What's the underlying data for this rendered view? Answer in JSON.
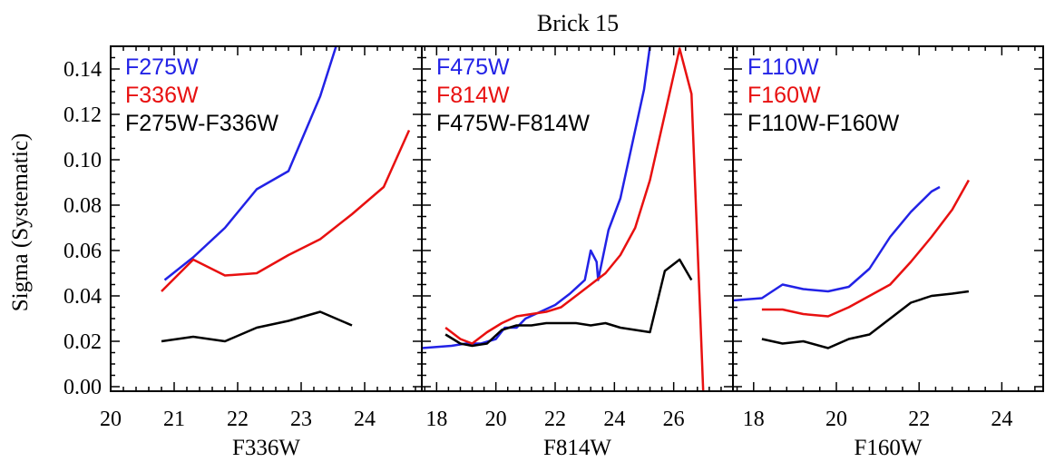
{
  "figure_title": "Brick 15",
  "ylabel": "Sigma (Systematic)",
  "colors": {
    "blue": "#2222e6",
    "red": "#e81010",
    "black": "#000000"
  },
  "chart_data": [
    {
      "type": "line",
      "title": "",
      "xlabel": "F336W",
      "ylabel": "Sigma (Systematic)",
      "xlim": [
        20,
        24.9
      ],
      "ylim": [
        -0.002,
        0.15
      ],
      "xticks": [
        20,
        21,
        22,
        23,
        24
      ],
      "xtick_labels": [
        "20",
        "21",
        "22",
        "23",
        "24"
      ],
      "yticks": [
        0.0,
        0.02,
        0.04,
        0.06,
        0.08,
        0.1,
        0.12,
        0.14
      ],
      "ytick_labels": [
        "0.00",
        "0.02",
        "0.04",
        "0.06",
        "0.08",
        "0.10",
        "0.12",
        "0.14"
      ],
      "legend_placement": "top-left",
      "series": [
        {
          "name": "F275W",
          "color": "#2222e6",
          "x": [
            20.85,
            21.3,
            21.8,
            22.3,
            22.8,
            23.3,
            23.55
          ],
          "y": [
            0.047,
            0.057,
            0.07,
            0.087,
            0.095,
            0.128,
            0.15
          ]
        },
        {
          "name": "F336W",
          "color": "#e81010",
          "x": [
            20.8,
            21.3,
            21.8,
            22.3,
            22.8,
            23.3,
            23.8,
            24.3,
            24.7
          ],
          "y": [
            0.042,
            0.056,
            0.049,
            0.05,
            0.058,
            0.065,
            0.076,
            0.088,
            0.113
          ]
        },
        {
          "name": "F275W-F336W",
          "color": "#000000",
          "x": [
            20.8,
            21.3,
            21.8,
            22.3,
            22.8,
            23.3,
            23.8
          ],
          "y": [
            0.02,
            0.022,
            0.02,
            0.026,
            0.029,
            0.033,
            0.027
          ]
        }
      ]
    },
    {
      "type": "line",
      "title": "",
      "xlabel": "F814W",
      "ylabel": "",
      "xlim": [
        17.5,
        28.0
      ],
      "ylim": [
        -0.002,
        0.15
      ],
      "xticks": [
        18,
        20,
        22,
        24,
        26
      ],
      "xtick_labels": [
        "18",
        "20",
        "22",
        "24",
        "26"
      ],
      "yticks": [
        0.0,
        0.02,
        0.04,
        0.06,
        0.08,
        0.1,
        0.12,
        0.14
      ],
      "ytick_labels": [],
      "legend_placement": "top-left",
      "series": [
        {
          "name": "F475W",
          "color": "#2222e6",
          "x": [
            17.5,
            18.5,
            19.0,
            19.5,
            20.0,
            20.3,
            20.7,
            21.0,
            21.5,
            22.0,
            22.5,
            23.0,
            23.2,
            23.4,
            23.45,
            23.8,
            24.2,
            24.5,
            25.0,
            25.2,
            25.4
          ],
          "y": [
            0.017,
            0.018,
            0.019,
            0.019,
            0.021,
            0.026,
            0.026,
            0.03,
            0.033,
            0.036,
            0.041,
            0.047,
            0.06,
            0.055,
            0.047,
            0.069,
            0.083,
            0.101,
            0.131,
            0.15,
            0.165
          ]
        },
        {
          "name": "F814W",
          "color": "#e81010",
          "x": [
            18.3,
            18.8,
            19.2,
            19.7,
            20.2,
            20.7,
            21.2,
            21.7,
            22.2,
            22.7,
            23.2,
            23.7,
            24.2,
            24.7,
            25.2,
            25.7,
            26.2,
            26.6,
            26.9,
            27.0
          ],
          "y": [
            0.026,
            0.021,
            0.019,
            0.024,
            0.028,
            0.031,
            0.032,
            0.033,
            0.035,
            0.04,
            0.045,
            0.05,
            0.058,
            0.07,
            0.091,
            0.12,
            0.149,
            0.129,
            0.03,
            -0.003
          ]
        },
        {
          "name": "F475W-F814W",
          "color": "#000000",
          "x": [
            18.3,
            18.8,
            19.2,
            19.7,
            20.2,
            20.7,
            21.2,
            21.7,
            22.2,
            22.7,
            23.2,
            23.7,
            24.2,
            24.7,
            25.2,
            25.7,
            26.2,
            26.6
          ],
          "y": [
            0.023,
            0.019,
            0.018,
            0.019,
            0.025,
            0.027,
            0.027,
            0.028,
            0.028,
            0.028,
            0.027,
            0.028,
            0.026,
            0.025,
            0.024,
            0.051,
            0.056,
            0.047
          ]
        }
      ]
    },
    {
      "type": "line",
      "title": "",
      "xlabel": "F160W",
      "ylabel": "",
      "xlim": [
        17.5,
        25.0
      ],
      "ylim": [
        -0.002,
        0.15
      ],
      "xticks": [
        18,
        20,
        22,
        24
      ],
      "xtick_labels": [
        "18",
        "20",
        "22",
        "24"
      ],
      "yticks": [
        0.0,
        0.02,
        0.04,
        0.06,
        0.08,
        0.1,
        0.12,
        0.14
      ],
      "ytick_labels": [],
      "legend_placement": "top-left",
      "series": [
        {
          "name": "F110W",
          "color": "#2222e6",
          "x": [
            17.5,
            18.2,
            18.7,
            19.2,
            19.8,
            20.3,
            20.8,
            21.3,
            21.8,
            22.3,
            22.5
          ],
          "y": [
            0.038,
            0.039,
            0.045,
            0.043,
            0.042,
            0.044,
            0.052,
            0.066,
            0.077,
            0.086,
            0.088
          ]
        },
        {
          "name": "F160W",
          "color": "#e81010",
          "x": [
            18.2,
            18.7,
            19.2,
            19.8,
            20.3,
            20.8,
            21.3,
            21.8,
            22.3,
            22.8,
            23.2
          ],
          "y": [
            0.034,
            0.034,
            0.032,
            0.031,
            0.035,
            0.04,
            0.045,
            0.055,
            0.066,
            0.078,
            0.091
          ]
        },
        {
          "name": "F110W-F160W",
          "color": "#000000",
          "x": [
            18.2,
            18.7,
            19.2,
            19.8,
            20.3,
            20.8,
            21.3,
            21.8,
            22.3,
            22.8,
            23.2
          ],
          "y": [
            0.021,
            0.019,
            0.02,
            0.017,
            0.021,
            0.023,
            0.03,
            0.037,
            0.04,
            0.041,
            0.042
          ]
        }
      ]
    }
  ]
}
